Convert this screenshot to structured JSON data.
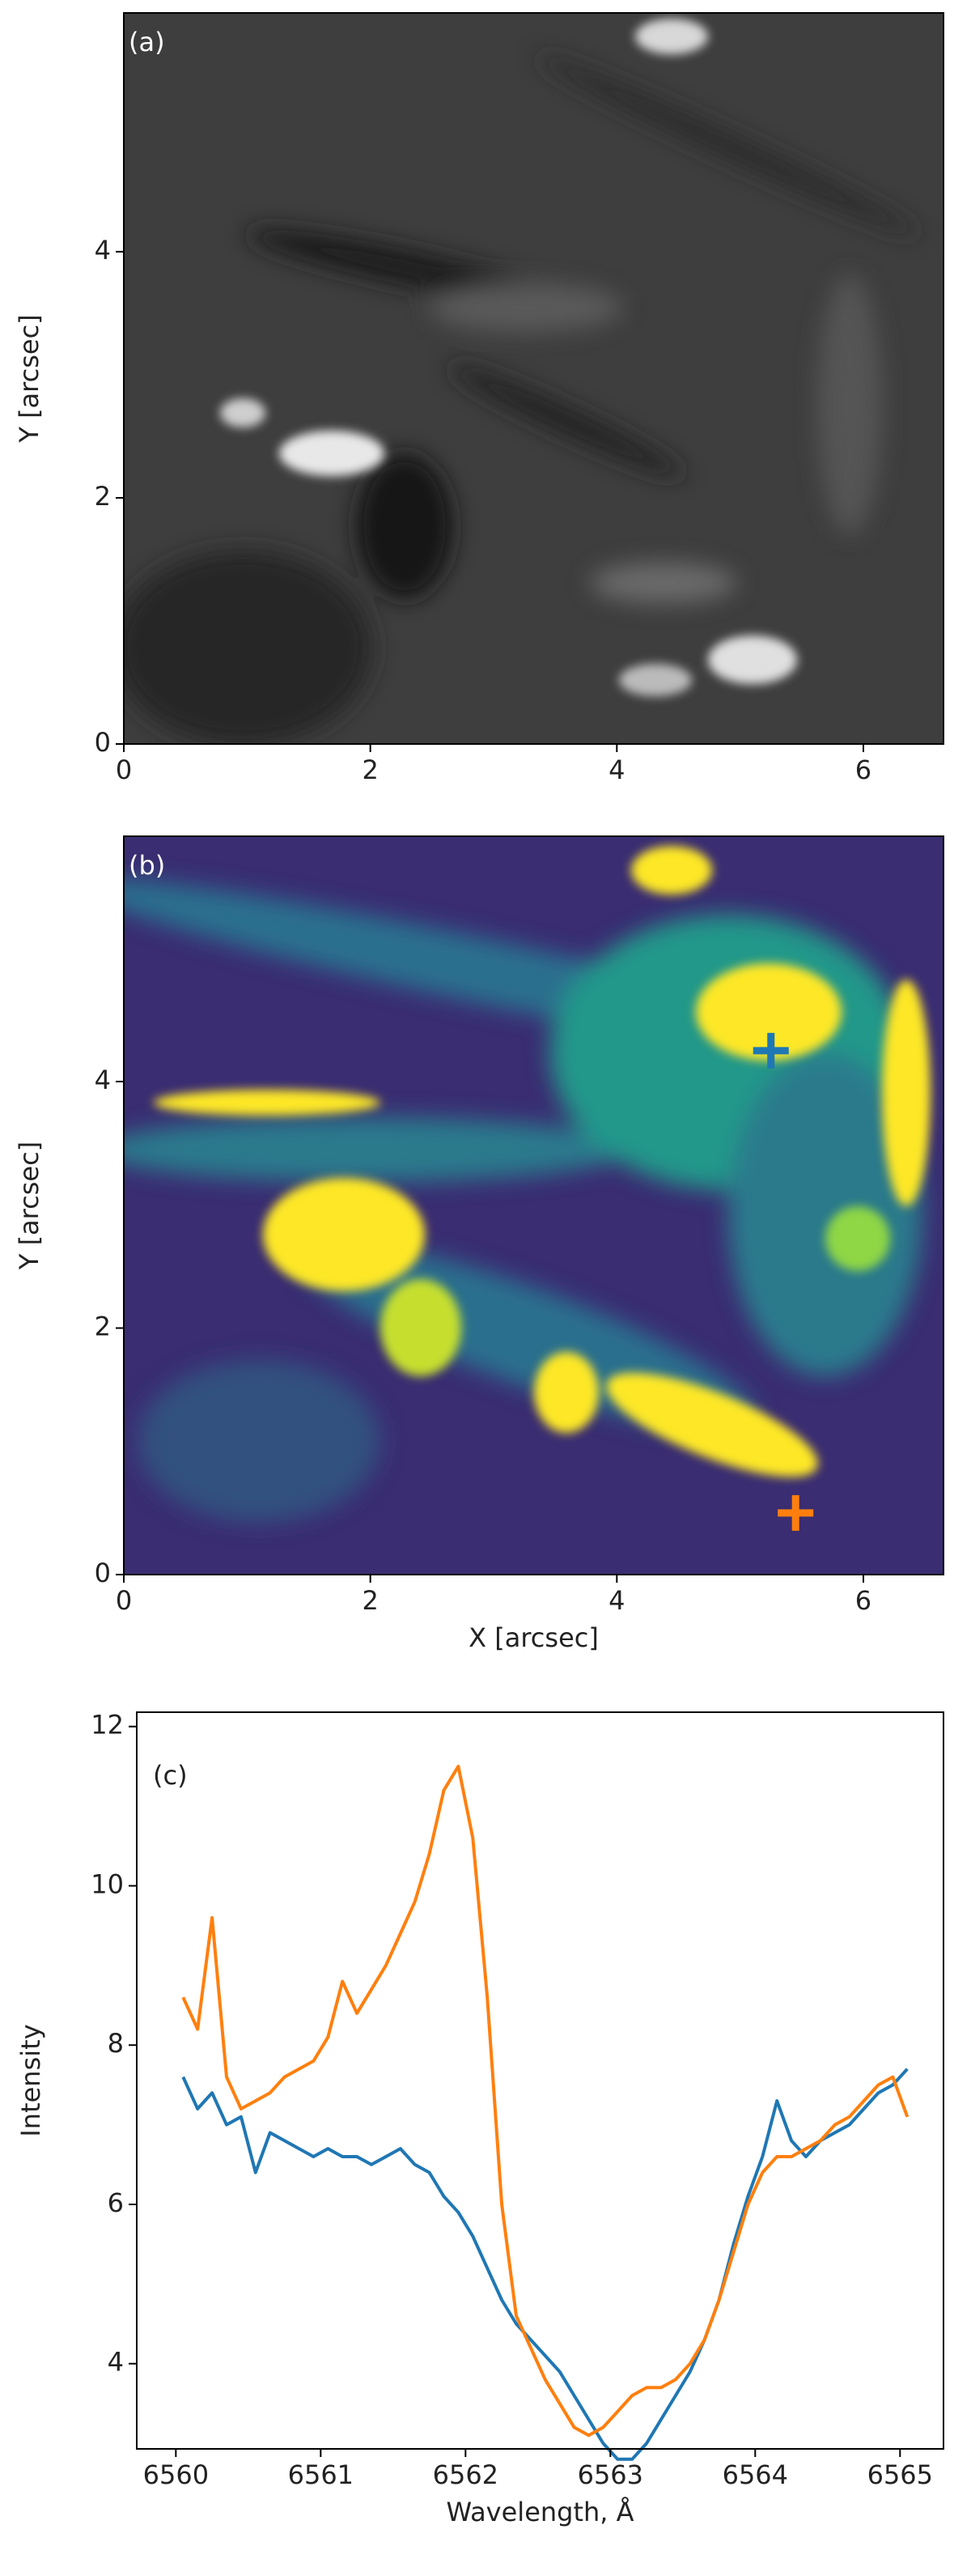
{
  "chart_data": [
    {
      "type": "image",
      "title": "(a)",
      "ylabel": "Y [arcsec]",
      "xlim": [
        0,
        6.65
      ],
      "ylim": [
        0,
        5.94
      ],
      "xticks": [
        0,
        2,
        4,
        6
      ],
      "yticks": [
        0,
        2,
        4
      ]
    },
    {
      "type": "image",
      "title": "(b)",
      "xlabel": "X [arcsec]",
      "ylabel": "Y [arcsec]",
      "xlim": [
        0,
        6.65
      ],
      "ylim": [
        0,
        5.99
      ],
      "xticks": [
        0,
        2,
        4,
        6
      ],
      "yticks": [
        0,
        2,
        4
      ],
      "markers": [
        {
          "x": 5.25,
          "y": 4.25,
          "color": "#1f77b4"
        },
        {
          "x": 5.45,
          "y": 0.5,
          "color": "#ff7f0e"
        }
      ]
    },
    {
      "type": "line",
      "title": "(c)",
      "xlabel": "Wavelength, Å",
      "ylabel": "Intensity",
      "xlim": [
        6559.73,
        6565.3
      ],
      "ylim": [
        2.93,
        12.18
      ],
      "xticks": [
        6560,
        6561,
        6562,
        6563,
        6564,
        6565
      ],
      "yticks": [
        4,
        6,
        8,
        10,
        12
      ],
      "x": [
        6560.05,
        6560.15,
        6560.25,
        6560.35,
        6560.45,
        6560.55,
        6560.65,
        6560.75,
        6560.85,
        6560.95,
        6561.05,
        6561.15,
        6561.25,
        6561.35,
        6561.45,
        6561.55,
        6561.65,
        6561.75,
        6561.85,
        6561.95,
        6562.05,
        6562.15,
        6562.25,
        6562.35,
        6562.45,
        6562.55,
        6562.65,
        6562.75,
        6562.85,
        6562.95,
        6563.05,
        6563.15,
        6563.25,
        6563.35,
        6563.45,
        6563.55,
        6563.65,
        6563.75,
        6563.85,
        6563.95,
        6564.05,
        6564.15,
        6564.25,
        6564.35,
        6564.45,
        6564.55,
        6564.65,
        6564.75,
        6564.85,
        6564.95,
        6565.05
      ],
      "series": [
        {
          "color": "#1f77b4",
          "values": [
            7.6,
            7.2,
            7.4,
            7.0,
            7.1,
            6.4,
            6.9,
            6.8,
            6.7,
            6.6,
            6.7,
            6.6,
            6.6,
            6.5,
            6.6,
            6.7,
            6.5,
            6.4,
            6.1,
            5.9,
            5.6,
            5.2,
            4.8,
            4.5,
            4.3,
            4.1,
            3.9,
            3.6,
            3.3,
            3.0,
            2.8,
            2.8,
            3.0,
            3.3,
            3.6,
            3.9,
            4.3,
            4.8,
            5.5,
            6.1,
            6.6,
            7.3,
            6.8,
            6.6,
            6.8,
            6.9,
            7.0,
            7.2,
            7.4,
            7.5,
            7.7
          ]
        },
        {
          "color": "#ff7f0e",
          "values": [
            8.6,
            8.2,
            9.6,
            7.6,
            7.2,
            7.3,
            7.4,
            7.6,
            7.7,
            7.8,
            8.1,
            8.8,
            8.4,
            8.7,
            9.0,
            9.4,
            9.8,
            10.4,
            11.2,
            11.5,
            10.6,
            8.6,
            6.0,
            4.6,
            4.2,
            3.8,
            3.5,
            3.2,
            3.1,
            3.2,
            3.4,
            3.6,
            3.7,
            3.7,
            3.8,
            4.0,
            4.3,
            4.8,
            5.4,
            6.0,
            6.4,
            6.6,
            6.6,
            6.7,
            6.8,
            7.0,
            7.1,
            7.3,
            7.5,
            7.6,
            7.1
          ]
        }
      ]
    }
  ]
}
